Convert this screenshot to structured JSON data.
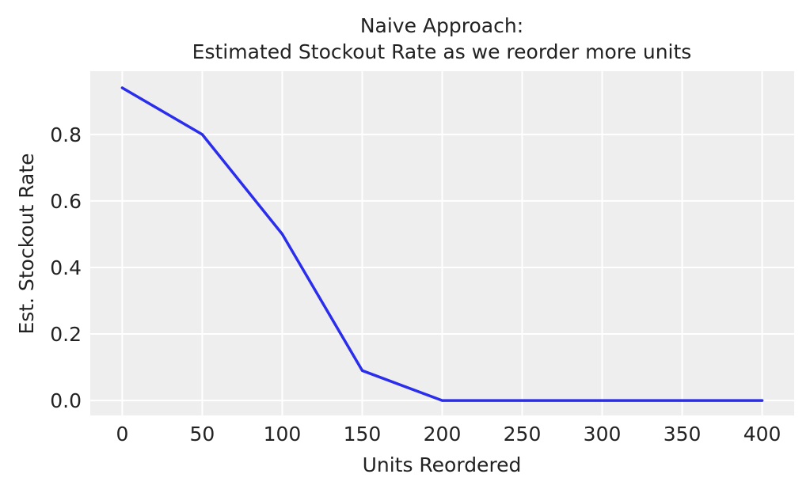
{
  "chart_data": {
    "type": "line",
    "title_lines": [
      "Naive Approach:",
      "Estimated Stockout Rate as we reorder more units"
    ],
    "xlabel": "Units Reordered",
    "ylabel": "Est. Stockout Rate",
    "xlim": [
      -20,
      420
    ],
    "ylim": [
      -0.045,
      0.99
    ],
    "x_ticks": [
      0,
      50,
      100,
      150,
      200,
      250,
      300,
      350,
      400
    ],
    "x_tick_labels": [
      "0",
      "50",
      "100",
      "150",
      "200",
      "250",
      "300",
      "350",
      "400"
    ],
    "y_ticks": [
      0.0,
      0.2,
      0.4,
      0.6,
      0.8
    ],
    "y_tick_labels": [
      "0.0",
      "0.2",
      "0.4",
      "0.6",
      "0.8"
    ],
    "grid": true,
    "series": [
      {
        "x": [
          0,
          50,
          100,
          150,
          200,
          250,
          300,
          350,
          400
        ],
        "y": [
          0.94,
          0.8,
          0.5,
          0.09,
          0.0,
          0.0,
          0.0,
          0.0,
          0.0
        ],
        "color": "#2a2eec"
      }
    ],
    "colors": {
      "plot_background": "#eeeeee",
      "grid": "#ffffff",
      "text": "#222222"
    }
  }
}
